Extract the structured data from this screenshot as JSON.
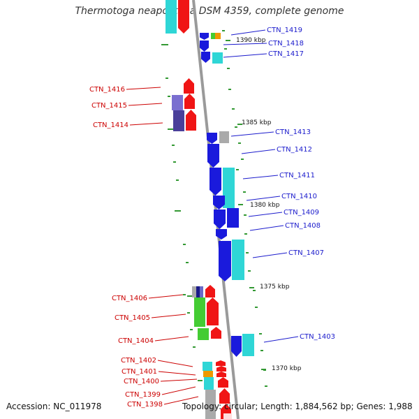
{
  "title": "Thermotoga neapolitana DSM 4359, complete genome",
  "footer": {
    "accession": "Accession: NC_011978",
    "topology": "Topology: circular; Length: 1,884,562 bp; Genes: 1,988"
  },
  "colors": {
    "forward_gene": "#1a1adc",
    "reverse_gene": "#f01515",
    "forward_label": "#1a1acc",
    "reverse_label": "#cc0000",
    "cyan_feature": "#2fd6d6",
    "green_feature": "#44cc33",
    "gray_feature": "#aaaaaa",
    "orange_feature": "#ee9900",
    "purple_feature": "#4a3f9a",
    "backbone": "#9a9a9a",
    "tick": "#339933"
  },
  "scale_labels": [
    "1390 kbp",
    "1385 kbp",
    "1380 kbp",
    "1375 kbp",
    "1370 kbp"
  ],
  "forward_genes": [
    "CTN_1419",
    "CTN_1418",
    "CTN_1417",
    "CTN_1413",
    "CTN_1412",
    "CTN_1411",
    "CTN_1410",
    "CTN_1409",
    "CTN_1408",
    "CTN_1407",
    "CTN_1403"
  ],
  "reverse_genes": [
    "CTN_1416",
    "CTN_1415",
    "CTN_1414",
    "CTN_1406",
    "CTN_1405",
    "CTN_1404",
    "CTN_1402",
    "CTN_1401",
    "CTN_1400",
    "CTN_1399",
    "CTN_1398"
  ]
}
